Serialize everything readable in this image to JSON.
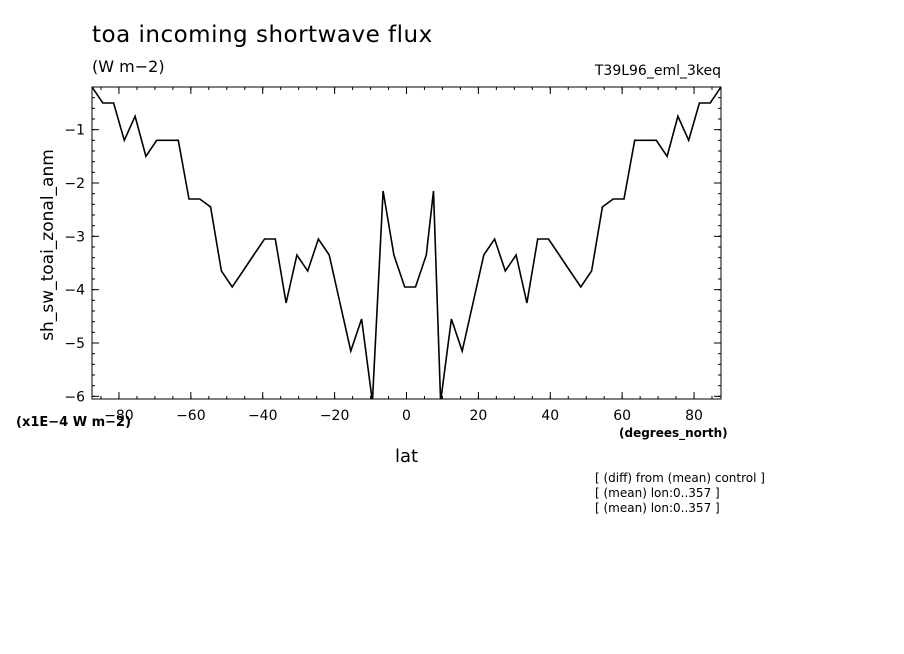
{
  "chart_data": {
    "type": "line",
    "title": "toa incoming shortwave flux",
    "units_label": "(W m−2)",
    "run_label": "T39L96_eml_3keq",
    "xlabel": "lat",
    "xunits": "(degrees_north)",
    "ylabel": "sh_sw_toai_zonal_anm",
    "yscale_label": "(x1E−4 W m−2)",
    "xlim": [
      -87.5,
      87.5
    ],
    "ylim": [
      -6.05,
      -0.2
    ],
    "xticks": [
      -80,
      -60,
      -40,
      -20,
      0,
      20,
      40,
      60,
      80
    ],
    "xtick_labels": [
      "−80",
      "−60",
      "−40",
      "−20",
      "0",
      "20",
      "40",
      "60",
      "80"
    ],
    "yticks": [
      -1,
      -2,
      -3,
      -4,
      -5,
      -6
    ],
    "ytick_labels": [
      "−1",
      "−2",
      "−3",
      "−4",
      "−5",
      "−6"
    ],
    "grid": false,
    "series": [
      {
        "x": [
          -87.5,
          -84.5,
          -81.5,
          -78.5,
          -75.5,
          -72.5,
          -69.5,
          -66.5,
          -63.5,
          -60.5,
          -57.5,
          -54.5,
          -51.5,
          -48.5,
          -45.5,
          -42.5,
          -39.5,
          -36.5,
          -33.5,
          -30.5,
          -27.5,
          -24.5,
          -21.5,
          -18.5,
          -15.5,
          -12.5,
          -9.5,
          -6.5,
          -3.5,
          -0.5,
          2.5,
          5.5,
          7.5,
          9.5,
          12.5,
          15.5,
          18.5,
          21.5,
          24.5,
          27.5,
          30.5,
          33.5,
          36.5,
          39.5,
          42.5,
          45.5,
          48.5,
          51.5,
          54.5,
          57.5,
          60.5,
          63.5,
          66.5,
          69.5,
          72.5,
          75.5,
          78.5,
          81.5,
          84.5,
          87.5
        ],
        "values": [
          -0.2,
          -0.5,
          -0.5,
          -1.2,
          -0.75,
          -1.5,
          -1.2,
          -1.2,
          -1.2,
          -2.3,
          -2.3,
          -2.45,
          -3.65,
          -3.95,
          -3.65,
          -3.35,
          -3.05,
          -3.05,
          -4.25,
          -3.35,
          -3.65,
          -3.05,
          -3.35,
          -4.25,
          -5.15,
          -4.55,
          -6.1,
          -2.15,
          -3.35,
          -3.95,
          -3.95,
          -3.35,
          -2.15,
          -6.1,
          -4.55,
          -5.15,
          -4.25,
          -3.35,
          -3.05,
          -3.65,
          -3.35,
          -4.25,
          -3.05,
          -3.05,
          -3.35,
          -3.65,
          -3.95,
          -3.65,
          -2.45,
          -2.3,
          -2.3,
          -1.2,
          -1.2,
          -1.2,
          -1.5,
          -0.75,
          -1.2,
          -0.5,
          -0.5,
          -0.2
        ]
      }
    ]
  },
  "notes": [
    "[ (diff) from (mean) control ]",
    "[ (mean) lon:0..357 ]",
    "[ (mean) lon:0..357 ]"
  ]
}
